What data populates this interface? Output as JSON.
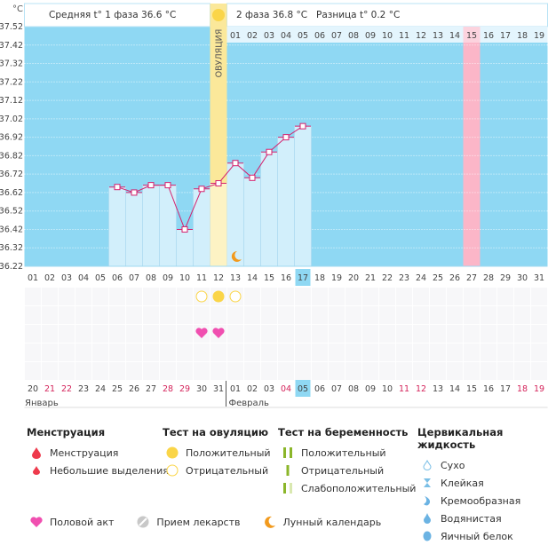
{
  "chart_data": {
    "type": "bar+line",
    "y_unit": "°C",
    "ylim": [
      36.22,
      37.52
    ],
    "y_ticks": [
      "37.52",
      "37.42",
      "37.32",
      "37.22",
      "37.12",
      "37.02",
      "36.92",
      "36.82",
      "36.72",
      "36.62",
      "36.52",
      "36.42",
      "36.32",
      "36.22"
    ],
    "cycle_days": [
      "01",
      "02",
      "03",
      "04",
      "05",
      "06",
      "07",
      "08",
      "09",
      "10",
      "11",
      "12",
      "13",
      "14",
      "15",
      "16",
      "17",
      "18",
      "19",
      "20",
      "21",
      "22",
      "23",
      "24",
      "25",
      "26",
      "27",
      "28",
      "29",
      "30",
      "31"
    ],
    "temperatures": [
      null,
      null,
      null,
      null,
      null,
      36.65,
      36.62,
      36.66,
      36.66,
      36.42,
      36.64,
      36.67,
      36.78,
      36.7,
      36.84,
      36.92,
      36.98,
      null,
      null,
      null,
      null,
      null,
      null,
      null,
      null,
      null,
      null,
      null,
      null,
      null,
      null
    ],
    "current_day": 17,
    "ovulation_day": 12,
    "ovulation_label": "ОВУЛЯЦИЯ",
    "expected_period_day": 27,
    "next_cycle_dates": [
      "01",
      "02",
      "03",
      "04",
      "05",
      "06",
      "07",
      "08",
      "09",
      "10",
      "11",
      "12",
      "13",
      "14",
      "15",
      "16",
      "17",
      "18",
      "19"
    ],
    "calendar_dates": [
      "20",
      "21",
      "22",
      "23",
      "24",
      "25",
      "26",
      "27",
      "28",
      "29",
      "30",
      "31",
      "01",
      "02",
      "03",
      "04",
      "05",
      "06",
      "07",
      "08",
      "09",
      "10",
      "11",
      "12",
      "13",
      "14",
      "15",
      "16",
      "17",
      "18",
      "19"
    ],
    "weekend_dates_idx": [
      1,
      2,
      8,
      9,
      15,
      22,
      23,
      29,
      30
    ],
    "months": [
      "Январь",
      "Февраль"
    ],
    "ovulation_tests": {
      "11": "negative",
      "12": "positive",
      "13": "negative"
    },
    "intercourse_days": [
      11,
      12
    ],
    "moon_days": [
      13
    ]
  },
  "header": {
    "phase1": "Средняя t° 1 фаза 36.6 °C",
    "phase2": "2 фаза 36.8 °C",
    "diff": "Разница t° 0.2 °C"
  },
  "legend": {
    "menstruation": {
      "title": "Менструация",
      "items": [
        "Менструация",
        "Небольшие выделения"
      ]
    },
    "ovulation_test": {
      "title": "Тест на овуляцию",
      "items": [
        "Положительный",
        "Отрицательный"
      ]
    },
    "pregnancy_test": {
      "title": "Тест на беременность",
      "items": [
        "Положительный",
        "Отрицательный",
        "Слабоположительный"
      ]
    },
    "cervical": {
      "title": "Цервикальная жидкость",
      "items": [
        "Сухо",
        "Клейкая",
        "Кремообразная",
        "Водянистая",
        "Яичный белок"
      ]
    },
    "other": [
      "Половой акт",
      "Прием лекарств",
      "Лунный календарь"
    ]
  },
  "colors": {
    "bg": "#8fd8f3",
    "bar": "#d2effb",
    "line": "#d4226e",
    "ovu": "#fbe89a",
    "period": "#fbb6c8",
    "weekend": "#d4225a",
    "today": "#8fd8f3"
  }
}
